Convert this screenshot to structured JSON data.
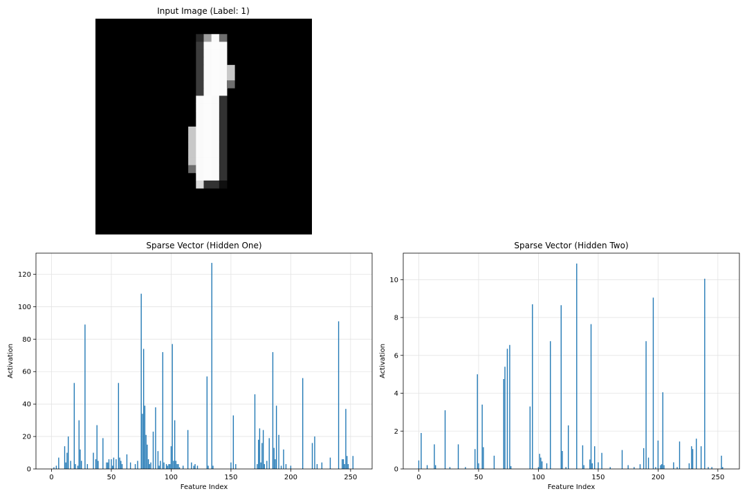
{
  "chart_data": [
    {
      "type": "image",
      "title": "Input Image (Label: 1)",
      "description_of_pixels": "grayscale digit, 28x28",
      "grid": false,
      "pixels": [
        {
          "row": 2,
          "col": 13,
          "gray": 40
        },
        {
          "row": 2,
          "col": 14,
          "gray": 160
        },
        {
          "row": 2,
          "col": 15,
          "gray": 250
        },
        {
          "row": 2,
          "col": 16,
          "gray": 110
        },
        {
          "row": 3,
          "col": 13,
          "gray": 60
        },
        {
          "row": 3,
          "col": 14,
          "gray": 250
        },
        {
          "row": 3,
          "col": 15,
          "gray": 252
        },
        {
          "row": 3,
          "col": 16,
          "gray": 250
        },
        {
          "row": 4,
          "col": 13,
          "gray": 60
        },
        {
          "row": 4,
          "col": 14,
          "gray": 250
        },
        {
          "row": 4,
          "col": 15,
          "gray": 252
        },
        {
          "row": 4,
          "col": 16,
          "gray": 250
        },
        {
          "row": 5,
          "col": 13,
          "gray": 60
        },
        {
          "row": 5,
          "col": 14,
          "gray": 250
        },
        {
          "row": 5,
          "col": 15,
          "gray": 252
        },
        {
          "row": 5,
          "col": 16,
          "gray": 250
        },
        {
          "row": 6,
          "col": 13,
          "gray": 60
        },
        {
          "row": 6,
          "col": 14,
          "gray": 250
        },
        {
          "row": 6,
          "col": 15,
          "gray": 252
        },
        {
          "row": 6,
          "col": 16,
          "gray": 250
        },
        {
          "row": 6,
          "col": 17,
          "gray": 200
        },
        {
          "row": 7,
          "col": 13,
          "gray": 60
        },
        {
          "row": 7,
          "col": 14,
          "gray": 250
        },
        {
          "row": 7,
          "col": 15,
          "gray": 252
        },
        {
          "row": 7,
          "col": 16,
          "gray": 250
        },
        {
          "row": 7,
          "col": 17,
          "gray": 200
        },
        {
          "row": 8,
          "col": 13,
          "gray": 60
        },
        {
          "row": 8,
          "col": 14,
          "gray": 250
        },
        {
          "row": 8,
          "col": 15,
          "gray": 252
        },
        {
          "row": 8,
          "col": 16,
          "gray": 250
        },
        {
          "row": 8,
          "col": 17,
          "gray": 110
        },
        {
          "row": 9,
          "col": 13,
          "gray": 60
        },
        {
          "row": 9,
          "col": 14,
          "gray": 250
        },
        {
          "row": 9,
          "col": 15,
          "gray": 252
        },
        {
          "row": 9,
          "col": 16,
          "gray": 250
        },
        {
          "row": 10,
          "col": 13,
          "gray": 250
        },
        {
          "row": 10,
          "col": 14,
          "gray": 252
        },
        {
          "row": 10,
          "col": 15,
          "gray": 250
        },
        {
          "row": 10,
          "col": 16,
          "gray": 50
        },
        {
          "row": 11,
          "col": 13,
          "gray": 250
        },
        {
          "row": 11,
          "col": 14,
          "gray": 252
        },
        {
          "row": 11,
          "col": 15,
          "gray": 250
        },
        {
          "row": 11,
          "col": 16,
          "gray": 50
        },
        {
          "row": 12,
          "col": 13,
          "gray": 250
        },
        {
          "row": 12,
          "col": 14,
          "gray": 252
        },
        {
          "row": 12,
          "col": 15,
          "gray": 250
        },
        {
          "row": 12,
          "col": 16,
          "gray": 50
        },
        {
          "row": 13,
          "col": 13,
          "gray": 250
        },
        {
          "row": 13,
          "col": 14,
          "gray": 252
        },
        {
          "row": 13,
          "col": 15,
          "gray": 250
        },
        {
          "row": 13,
          "col": 16,
          "gray": 50
        },
        {
          "row": 14,
          "col": 12,
          "gray": 200
        },
        {
          "row": 14,
          "col": 13,
          "gray": 250
        },
        {
          "row": 14,
          "col": 14,
          "gray": 252
        },
        {
          "row": 14,
          "col": 15,
          "gray": 250
        },
        {
          "row": 14,
          "col": 16,
          "gray": 50
        },
        {
          "row": 15,
          "col": 12,
          "gray": 200
        },
        {
          "row": 15,
          "col": 13,
          "gray": 250
        },
        {
          "row": 15,
          "col": 14,
          "gray": 252
        },
        {
          "row": 15,
          "col": 15,
          "gray": 250
        },
        {
          "row": 15,
          "col": 16,
          "gray": 50
        },
        {
          "row": 16,
          "col": 12,
          "gray": 200
        },
        {
          "row": 16,
          "col": 13,
          "gray": 250
        },
        {
          "row": 16,
          "col": 14,
          "gray": 252
        },
        {
          "row": 16,
          "col": 15,
          "gray": 250
        },
        {
          "row": 16,
          "col": 16,
          "gray": 50
        },
        {
          "row": 17,
          "col": 12,
          "gray": 200
        },
        {
          "row": 17,
          "col": 13,
          "gray": 250
        },
        {
          "row": 17,
          "col": 14,
          "gray": 252
        },
        {
          "row": 17,
          "col": 15,
          "gray": 250
        },
        {
          "row": 17,
          "col": 16,
          "gray": 50
        },
        {
          "row": 18,
          "col": 12,
          "gray": 200
        },
        {
          "row": 18,
          "col": 13,
          "gray": 250
        },
        {
          "row": 18,
          "col": 14,
          "gray": 252
        },
        {
          "row": 18,
          "col": 15,
          "gray": 250
        },
        {
          "row": 18,
          "col": 16,
          "gray": 50
        },
        {
          "row": 19,
          "col": 12,
          "gray": 110
        },
        {
          "row": 19,
          "col": 13,
          "gray": 250
        },
        {
          "row": 19,
          "col": 14,
          "gray": 252
        },
        {
          "row": 19,
          "col": 15,
          "gray": 250
        },
        {
          "row": 19,
          "col": 16,
          "gray": 50
        },
        {
          "row": 20,
          "col": 13,
          "gray": 250
        },
        {
          "row": 20,
          "col": 14,
          "gray": 252
        },
        {
          "row": 20,
          "col": 15,
          "gray": 250
        },
        {
          "row": 20,
          "col": 16,
          "gray": 50
        },
        {
          "row": 21,
          "col": 13,
          "gray": 220
        },
        {
          "row": 21,
          "col": 14,
          "gray": 50
        },
        {
          "row": 21,
          "col": 15,
          "gray": 50
        },
        {
          "row": 21,
          "col": 16,
          "gray": 15
        }
      ]
    },
    {
      "type": "bar",
      "title": "Sparse Vector (Hidden One)",
      "xlabel": "Feature Index",
      "ylabel": "Activation",
      "xlim": [
        -13,
        268
      ],
      "ylim": [
        0,
        133
      ],
      "xticks": [
        0,
        50,
        100,
        150,
        200,
        250
      ],
      "yticks": [
        0,
        20,
        40,
        60,
        80,
        100,
        120
      ],
      "grid": true,
      "color": "#1f77b4",
      "x": [
        2,
        4,
        6,
        11,
        12,
        13,
        14,
        16,
        19,
        20,
        22,
        23,
        24,
        25,
        28,
        30,
        35,
        37,
        38,
        39,
        43,
        46,
        47,
        48,
        50,
        51,
        52,
        54,
        56,
        57,
        58,
        59,
        63,
        66,
        70,
        72,
        75,
        76,
        77,
        78,
        79,
        80,
        81,
        82,
        83,
        85,
        87,
        89,
        90,
        91,
        93,
        94,
        96,
        97,
        98,
        99,
        100,
        101,
        102,
        103,
        104,
        105,
        106,
        107,
        110,
        114,
        117,
        119,
        120,
        122,
        130,
        131,
        134,
        135,
        150,
        152,
        154,
        170,
        172,
        173,
        174,
        175,
        176,
        177,
        178,
        180,
        182,
        185,
        186,
        187,
        188,
        190,
        192,
        194,
        196,
        200,
        210,
        218,
        220,
        222,
        226,
        233,
        240,
        243,
        244,
        245,
        246,
        247,
        248,
        252
      ],
      "y": [
        1,
        2,
        7,
        14,
        4,
        10,
        20,
        5,
        53,
        3,
        2,
        30,
        12,
        5,
        89,
        3,
        10,
        6,
        27,
        5,
        19,
        4,
        4,
        6,
        6,
        2,
        7,
        6,
        53,
        7,
        5,
        3,
        9,
        4,
        3,
        5,
        108,
        34,
        74,
        39,
        21,
        15,
        6,
        3,
        4,
        23,
        38,
        11,
        2,
        5,
        72,
        4,
        3,
        2,
        3,
        3,
        14,
        77,
        5,
        30,
        5,
        3,
        3,
        1,
        2,
        24,
        4,
        2,
        3,
        2,
        57,
        2,
        127,
        2,
        4,
        33,
        3,
        46,
        3,
        18,
        25,
        4,
        16,
        24,
        3,
        5,
        19,
        72,
        13,
        6,
        39,
        21,
        2,
        12,
        3,
        2,
        56,
        16,
        20,
        3,
        4,
        7,
        91,
        6,
        6,
        3,
        37,
        8,
        3,
        8
      ]
    },
    {
      "type": "bar",
      "title": "Sparse Vector (Hidden Two)",
      "xlabel": "Feature Index",
      "ylabel": "Activation",
      "xlim": [
        -13,
        268
      ],
      "ylim": [
        0,
        11.4
      ],
      "xticks": [
        0,
        50,
        100,
        150,
        200,
        250
      ],
      "yticks": [
        0,
        2,
        4,
        6,
        8,
        10
      ],
      "grid": true,
      "color": "#1f77b4",
      "x": [
        0,
        2,
        7,
        13,
        14,
        22,
        26,
        33,
        39,
        47,
        49,
        50,
        53,
        54,
        63,
        71,
        72,
        74,
        76,
        77,
        93,
        95,
        100,
        101,
        102,
        103,
        107,
        110,
        119,
        120,
        123,
        125,
        132,
        137,
        138,
        143,
        144,
        145,
        147,
        150,
        153,
        160,
        170,
        175,
        180,
        185,
        188,
        190,
        192,
        196,
        198,
        200,
        202,
        203,
        204,
        205,
        213,
        216,
        218,
        226,
        228,
        229,
        232,
        236,
        239,
        242,
        245,
        253,
        254
      ],
      "y": [
        0.45,
        1.9,
        0.2,
        1.3,
        0.2,
        3.1,
        0.1,
        1.3,
        0.1,
        1.05,
        5.0,
        0.3,
        3.4,
        1.15,
        0.7,
        4.75,
        5.4,
        6.35,
        6.55,
        0.15,
        3.3,
        8.7,
        0.1,
        0.8,
        0.6,
        0.4,
        0.3,
        6.75,
        8.65,
        0.95,
        0.1,
        2.3,
        10.85,
        1.25,
        0.2,
        0.5,
        7.65,
        0.3,
        1.2,
        0.35,
        0.85,
        0.1,
        1.0,
        0.2,
        0.1,
        0.25,
        1.1,
        6.75,
        0.6,
        9.05,
        0.1,
        1.5,
        0.2,
        0.25,
        4.05,
        0.2,
        0.35,
        0.1,
        1.45,
        0.3,
        1.2,
        1.05,
        1.6,
        1.2,
        10.05,
        0.1,
        0.1,
        0.7,
        0.1
      ]
    }
  ]
}
